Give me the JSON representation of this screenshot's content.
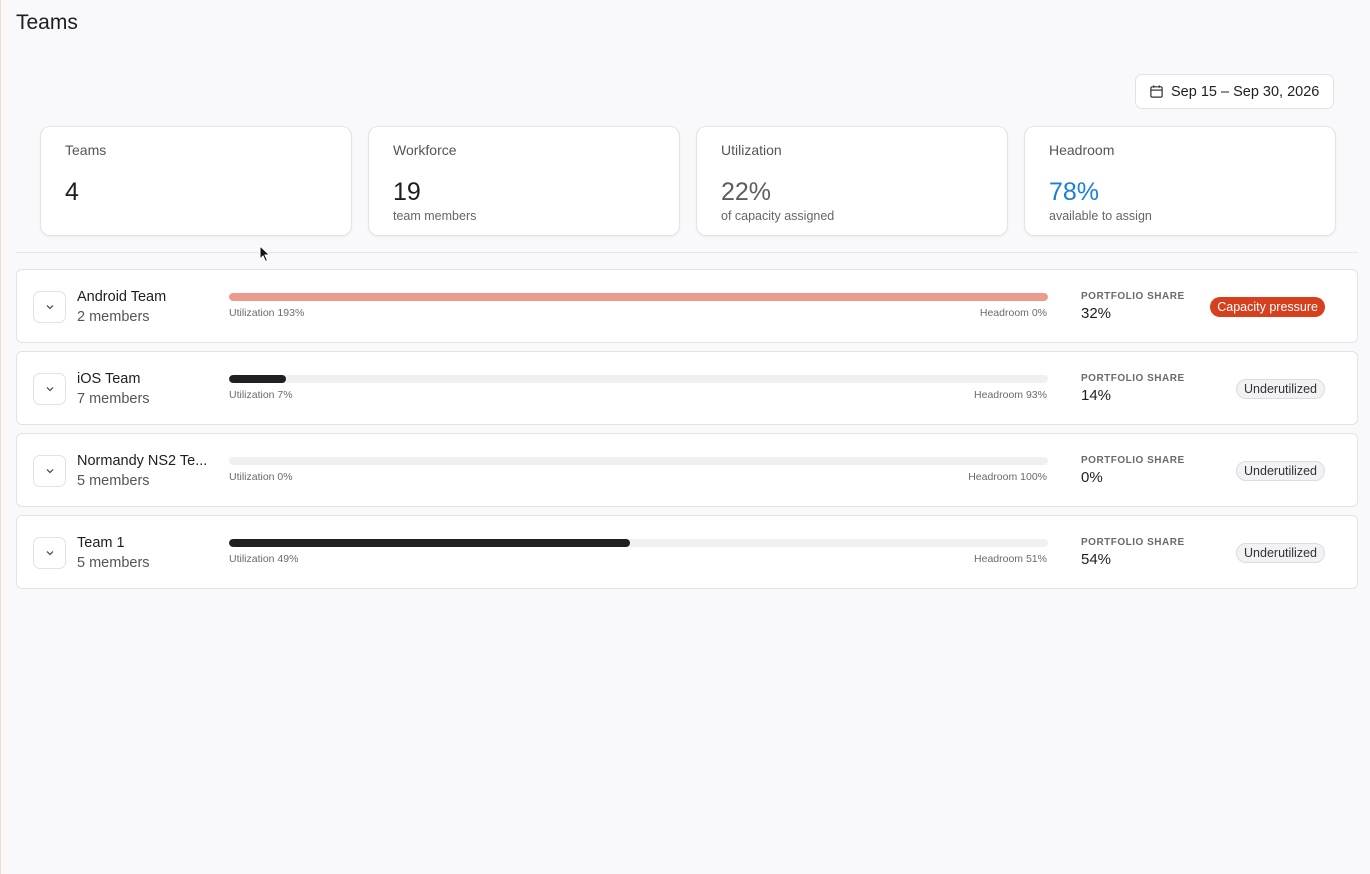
{
  "page": {
    "title": "Teams"
  },
  "date_range": {
    "label": "Sep 15 – Sep 30, 2026",
    "icon": "calendar-icon"
  },
  "stats": [
    {
      "label": "Teams",
      "value": "4",
      "sub": "",
      "style": "default"
    },
    {
      "label": "Workforce",
      "value": "19",
      "sub": "team members",
      "style": "default"
    },
    {
      "label": "Utilization",
      "value": "22%",
      "sub": "of capacity assigned",
      "style": "muted"
    },
    {
      "label": "Headroom",
      "value": "78%",
      "sub": "available to assign",
      "style": "accent"
    }
  ],
  "teams": [
    {
      "name": "Android Team",
      "members": "2 members",
      "utilization": 193,
      "utilization_label": "Utilization 193%",
      "headroom_label": "Headroom 0%",
      "share_label": "PORTFOLIO SHARE",
      "share": "32%",
      "status": "Capacity pressure",
      "status_type": "pressure"
    },
    {
      "name": "iOS Team",
      "members": "7 members",
      "utilization": 7,
      "utilization_label": "Utilization 7%",
      "headroom_label": "Headroom 93%",
      "share_label": "PORTFOLIO SHARE",
      "share": "14%",
      "status": "Underutilized",
      "status_type": "under"
    },
    {
      "name": "Normandy NS2 Te...",
      "members": "5 members",
      "utilization": 0,
      "utilization_label": "Utilization 0%",
      "headroom_label": "Headroom 100%",
      "share_label": "PORTFOLIO SHARE",
      "share": "0%",
      "status": "Underutilized",
      "status_type": "under"
    },
    {
      "name": "Team 1",
      "members": "5 members",
      "utilization": 49,
      "utilization_label": "Utilization 49%",
      "headroom_label": "Headroom 51%",
      "share_label": "PORTFOLIO SHARE",
      "share": "54%",
      "status": "Underutilized",
      "status_type": "under"
    }
  ],
  "colors": {
    "accent": "#1a7fd6",
    "pressure": "#d6401e",
    "over_bar": "#ec9a8c",
    "bar": "#1f2023"
  }
}
